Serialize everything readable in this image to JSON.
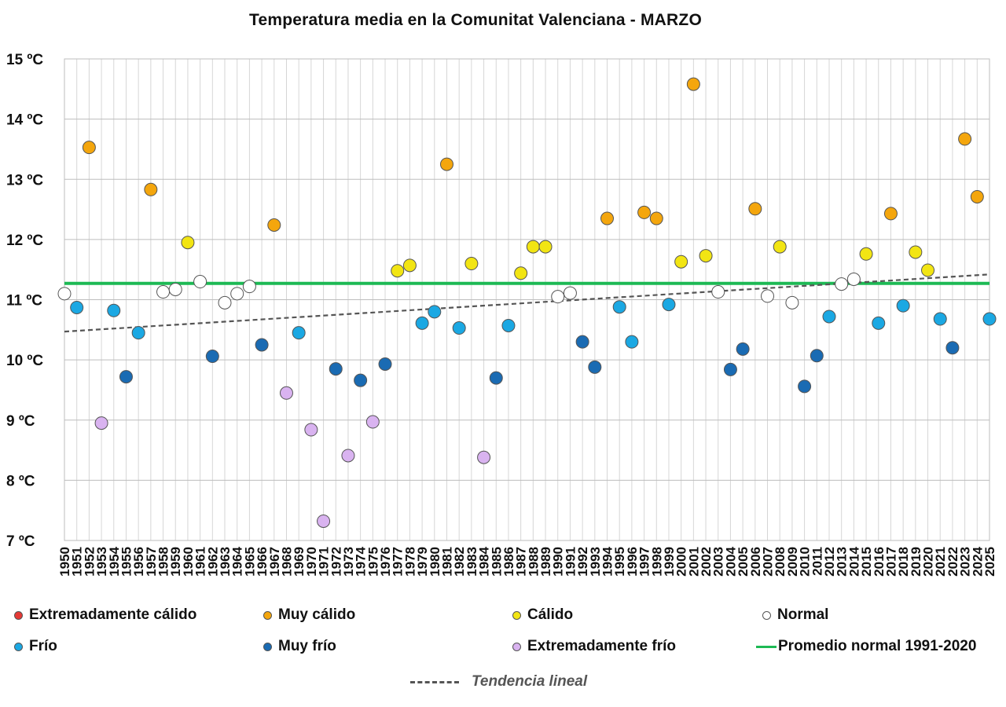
{
  "chart_data": {
    "type": "scatter",
    "title": "Temperatura media en la Comunitat Valenciana - MARZO",
    "y_tick_labels": [
      "7 ºC",
      "8 ºC",
      "9 ºC",
      "10 ºC",
      "11 ºC",
      "12 ºC",
      "13 ºC",
      "14 ºC",
      "15 ºC"
    ],
    "ylim": [
      7,
      15
    ],
    "y_unit": "ºC",
    "x_tick_labels": [
      "1950",
      "1951",
      "1952",
      "1953",
      "1954",
      "1955",
      "1956",
      "1957",
      "1958",
      "1959",
      "1960",
      "1961",
      "1962",
      "1963",
      "1964",
      "1965",
      "1966",
      "1967",
      "1968",
      "1969",
      "1970",
      "1971",
      "1972",
      "1973",
      "1974",
      "1975",
      "1976",
      "1977",
      "1978",
      "1979",
      "1980",
      "1981",
      "1982",
      "1983",
      "1984",
      "1985",
      "1986",
      "1987",
      "1988",
      "1989",
      "1990",
      "1991",
      "1992",
      "1993",
      "1994",
      "1995",
      "1996",
      "1997",
      "1998",
      "1999",
      "2000",
      "2001",
      "2002",
      "2003",
      "2004",
      "2005",
      "2006",
      "2007",
      "2008",
      "2009",
      "2010",
      "2011",
      "2012",
      "2013",
      "2014",
      "2015",
      "2016",
      "2017",
      "2018",
      "2019",
      "2020",
      "2021",
      "2022",
      "2023",
      "2024",
      "2025"
    ],
    "grid": true,
    "categories": [
      {
        "key": "ec",
        "name": "Extremadamente cálido",
        "color": "#e53935"
      },
      {
        "key": "mc",
        "name": "Muy cálido",
        "color": "#f4a60d"
      },
      {
        "key": "c",
        "name": "Cálido",
        "color": "#f2e513"
      },
      {
        "key": "n",
        "name": "Normal",
        "color": "#ffffff"
      },
      {
        "key": "f",
        "name": "Frío",
        "color": "#1ba8e3"
      },
      {
        "key": "mf",
        "name": "Muy frío",
        "color": "#1a6bb3"
      },
      {
        "key": "ef",
        "name": "Extremadamente frío",
        "color": "#d9b3f0"
      }
    ],
    "points": [
      {
        "x": 1950,
        "y": 11.1,
        "cat": "n"
      },
      {
        "x": 1951,
        "y": 10.87,
        "cat": "f"
      },
      {
        "x": 1952,
        "y": 13.53,
        "cat": "mc"
      },
      {
        "x": 1953,
        "y": 8.95,
        "cat": "ef"
      },
      {
        "x": 1954,
        "y": 10.82,
        "cat": "f"
      },
      {
        "x": 1955,
        "y": 9.72,
        "cat": "mf"
      },
      {
        "x": 1956,
        "y": 10.45,
        "cat": "f"
      },
      {
        "x": 1957,
        "y": 12.83,
        "cat": "mc"
      },
      {
        "x": 1958,
        "y": 11.13,
        "cat": "n"
      },
      {
        "x": 1959,
        "y": 11.17,
        "cat": "n"
      },
      {
        "x": 1960,
        "y": 11.95,
        "cat": "c"
      },
      {
        "x": 1961,
        "y": 11.3,
        "cat": "n"
      },
      {
        "x": 1962,
        "y": 10.06,
        "cat": "mf"
      },
      {
        "x": 1963,
        "y": 10.95,
        "cat": "n"
      },
      {
        "x": 1964,
        "y": 11.1,
        "cat": "n"
      },
      {
        "x": 1965,
        "y": 11.22,
        "cat": "n"
      },
      {
        "x": 1966,
        "y": 10.25,
        "cat": "mf"
      },
      {
        "x": 1967,
        "y": 12.24,
        "cat": "mc"
      },
      {
        "x": 1968,
        "y": 9.45,
        "cat": "ef"
      },
      {
        "x": 1969,
        "y": 10.45,
        "cat": "f"
      },
      {
        "x": 1970,
        "y": 8.84,
        "cat": "ef"
      },
      {
        "x": 1971,
        "y": 7.32,
        "cat": "ef"
      },
      {
        "x": 1972,
        "y": 9.85,
        "cat": "mf"
      },
      {
        "x": 1973,
        "y": 8.41,
        "cat": "ef"
      },
      {
        "x": 1974,
        "y": 9.66,
        "cat": "mf"
      },
      {
        "x": 1975,
        "y": 8.97,
        "cat": "ef"
      },
      {
        "x": 1976,
        "y": 9.93,
        "cat": "mf"
      },
      {
        "x": 1977,
        "y": 11.48,
        "cat": "c"
      },
      {
        "x": 1978,
        "y": 11.57,
        "cat": "c"
      },
      {
        "x": 1979,
        "y": 10.61,
        "cat": "f"
      },
      {
        "x": 1980,
        "y": 10.8,
        "cat": "f"
      },
      {
        "x": 1981,
        "y": 13.25,
        "cat": "mc"
      },
      {
        "x": 1982,
        "y": 10.53,
        "cat": "f"
      },
      {
        "x": 1983,
        "y": 11.6,
        "cat": "c"
      },
      {
        "x": 1984,
        "y": 8.38,
        "cat": "ef"
      },
      {
        "x": 1985,
        "y": 9.7,
        "cat": "mf"
      },
      {
        "x": 1986,
        "y": 10.57,
        "cat": "f"
      },
      {
        "x": 1987,
        "y": 11.44,
        "cat": "c"
      },
      {
        "x": 1988,
        "y": 11.88,
        "cat": "c"
      },
      {
        "x": 1989,
        "y": 11.88,
        "cat": "c"
      },
      {
        "x": 1990,
        "y": 11.05,
        "cat": "n"
      },
      {
        "x": 1991,
        "y": 11.11,
        "cat": "n"
      },
      {
        "x": 1992,
        "y": 10.3,
        "cat": "mf"
      },
      {
        "x": 1993,
        "y": 9.88,
        "cat": "mf"
      },
      {
        "x": 1994,
        "y": 12.35,
        "cat": "mc"
      },
      {
        "x": 1995,
        "y": 10.88,
        "cat": "f"
      },
      {
        "x": 1996,
        "y": 10.3,
        "cat": "f"
      },
      {
        "x": 1997,
        "y": 12.45,
        "cat": "mc"
      },
      {
        "x": 1998,
        "y": 12.35,
        "cat": "mc"
      },
      {
        "x": 1999,
        "y": 10.92,
        "cat": "f"
      },
      {
        "x": 2000,
        "y": 11.63,
        "cat": "c"
      },
      {
        "x": 2001,
        "y": 14.58,
        "cat": "mc"
      },
      {
        "x": 2002,
        "y": 11.73,
        "cat": "c"
      },
      {
        "x": 2003,
        "y": 11.13,
        "cat": "n"
      },
      {
        "x": 2004,
        "y": 9.84,
        "cat": "mf"
      },
      {
        "x": 2005,
        "y": 10.18,
        "cat": "mf"
      },
      {
        "x": 2006,
        "y": 12.51,
        "cat": "mc"
      },
      {
        "x": 2007,
        "y": 11.06,
        "cat": "n"
      },
      {
        "x": 2008,
        "y": 11.88,
        "cat": "c"
      },
      {
        "x": 2009,
        "y": 10.95,
        "cat": "n"
      },
      {
        "x": 2010,
        "y": 9.56,
        "cat": "mf"
      },
      {
        "x": 2011,
        "y": 10.07,
        "cat": "mf"
      },
      {
        "x": 2012,
        "y": 10.72,
        "cat": "f"
      },
      {
        "x": 2013,
        "y": 11.26,
        "cat": "n"
      },
      {
        "x": 2014,
        "y": 11.34,
        "cat": "n"
      },
      {
        "x": 2015,
        "y": 11.76,
        "cat": "c"
      },
      {
        "x": 2016,
        "y": 10.61,
        "cat": "f"
      },
      {
        "x": 2017,
        "y": 12.43,
        "cat": "mc"
      },
      {
        "x": 2018,
        "y": 10.9,
        "cat": "f"
      },
      {
        "x": 2019,
        "y": 11.79,
        "cat": "c"
      },
      {
        "x": 2020,
        "y": 11.49,
        "cat": "c"
      },
      {
        "x": 2021,
        "y": 10.68,
        "cat": "f"
      },
      {
        "x": 2022,
        "y": 10.2,
        "cat": "mf"
      },
      {
        "x": 2023,
        "y": 13.67,
        "cat": "mc"
      },
      {
        "x": 2024,
        "y": 12.71,
        "cat": "mc"
      },
      {
        "x": 2025,
        "y": 10.68,
        "cat": "f"
      }
    ],
    "normal_line": {
      "name": "Promedio normal 1991-2020",
      "y": 11.27,
      "color": "#1db954"
    },
    "trend_line": {
      "name": "Tendencia lineal",
      "y_start": 10.47,
      "y_end": 11.42,
      "color": "#555555"
    }
  }
}
